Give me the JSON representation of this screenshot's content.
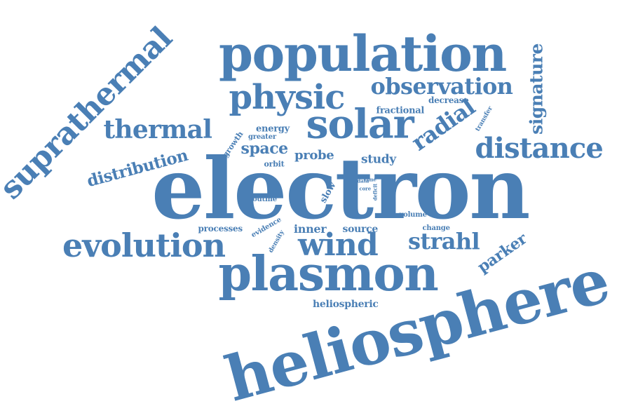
{
  "word_cloud": {
    "text_color": "#4a7fb5",
    "background": "#ffffff",
    "words": [
      {
        "key": "electron",
        "text": "electron",
        "orientation": "horizontal"
      },
      {
        "key": "heliosphere",
        "text": "heliosphere",
        "orientation": "slanted-up"
      },
      {
        "key": "population",
        "text": "population",
        "orientation": "horizontal"
      },
      {
        "key": "plasmon",
        "text": "plasmon",
        "orientation": "horizontal"
      },
      {
        "key": "solar",
        "text": "solar",
        "orientation": "horizontal"
      },
      {
        "key": "suprathermal",
        "text": "suprathermal",
        "orientation": "slanted-up"
      },
      {
        "key": "physic",
        "text": "physic",
        "orientation": "horizontal"
      },
      {
        "key": "evolution",
        "text": "evolution",
        "orientation": "horizontal"
      },
      {
        "key": "wind",
        "text": "wind",
        "orientation": "horizontal"
      },
      {
        "key": "distance",
        "text": "distance",
        "orientation": "horizontal"
      },
      {
        "key": "thermal",
        "text": "thermal",
        "orientation": "horizontal"
      },
      {
        "key": "observation",
        "text": "observation",
        "orientation": "horizontal"
      },
      {
        "key": "strahl",
        "text": "strahl",
        "orientation": "horizontal"
      },
      {
        "key": "radial",
        "text": "radial",
        "orientation": "slanted-up"
      },
      {
        "key": "signature",
        "text": "signature",
        "orientation": "vertical-up"
      },
      {
        "key": "distribution",
        "text": "distribution",
        "orientation": "slanted-up"
      },
      {
        "key": "space",
        "text": "space",
        "orientation": "horizontal"
      },
      {
        "key": "probe",
        "text": "probe",
        "orientation": "horizontal"
      },
      {
        "key": "study",
        "text": "study",
        "orientation": "horizontal"
      },
      {
        "key": "parker",
        "text": "parker",
        "orientation": "slanted-up"
      },
      {
        "key": "inner",
        "text": "inner",
        "orientation": "horizontal"
      },
      {
        "key": "source",
        "text": "source",
        "orientation": "horizontal"
      },
      {
        "key": "heliospheric",
        "text": "heliospheric",
        "orientation": "horizontal"
      },
      {
        "key": "processes",
        "text": "processes",
        "orientation": "horizontal"
      },
      {
        "key": "energy",
        "text": "energy",
        "orientation": "horizontal"
      },
      {
        "key": "fractional",
        "text": "fractional",
        "orientation": "horizontal"
      },
      {
        "key": "decrease",
        "text": "decrease",
        "orientation": "horizontal"
      },
      {
        "key": "growth",
        "text": "growth",
        "orientation": "slanted-up"
      },
      {
        "key": "greater",
        "text": "greater",
        "orientation": "horizontal"
      },
      {
        "key": "orbit",
        "text": "orbit",
        "orientation": "horizontal"
      },
      {
        "key": "slow",
        "text": "slow",
        "orientation": "slanted-up"
      },
      {
        "key": "routine",
        "text": "routine",
        "orientation": "horizontal"
      },
      {
        "key": "evidence",
        "text": "evidence",
        "orientation": "slanted-up"
      },
      {
        "key": "density",
        "text": "density",
        "orientation": "slanted-up"
      },
      {
        "key": "transfer",
        "text": "transfer",
        "orientation": "slanted-up"
      },
      {
        "key": "data",
        "text": "data",
        "orientation": "horizontal"
      },
      {
        "key": "time",
        "text": "time",
        "orientation": "horizontal"
      },
      {
        "key": "core",
        "text": "core",
        "orientation": "horizontal"
      },
      {
        "key": "deficit",
        "text": "deficit",
        "orientation": "vertical-up"
      },
      {
        "key": "volume",
        "text": "volume",
        "orientation": "horizontal"
      },
      {
        "key": "change",
        "text": "change",
        "orientation": "horizontal"
      }
    ]
  }
}
